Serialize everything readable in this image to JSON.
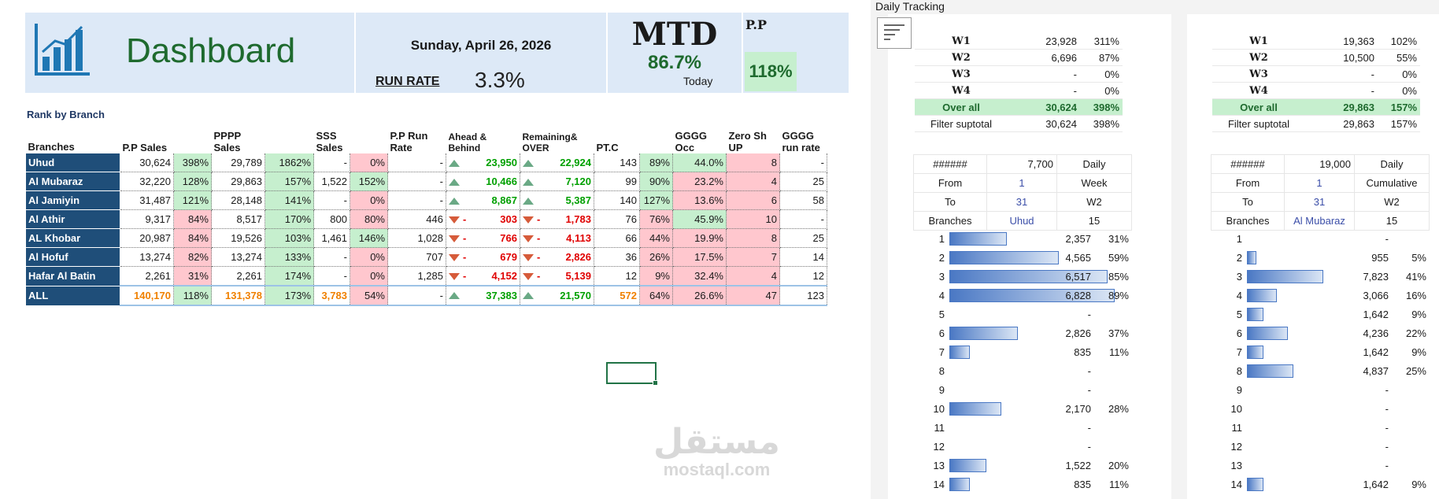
{
  "header": {
    "title": "Dashboard",
    "date": "Sunday, April 26, 2026",
    "run_rate_label": "RUN RATE",
    "run_rate_value": "3.3%",
    "mtd_label": "MTD",
    "mtd_value": "86.7%",
    "mtd_sub": "Today",
    "pp_label": "P.P",
    "pp_value": "118%",
    "pp_color": "#c6efce"
  },
  "rank": {
    "title": "Rank by Branch",
    "columns": [
      "Branches",
      "P.P Sales",
      "",
      "PPPP Sales",
      "",
      "SSS Sales",
      "",
      "P.P Run Rate",
      "Ahead & Behind",
      "Remaining& OVER",
      "PT.C",
      "",
      "GGGG Occ",
      "Zero Sh UP",
      "GGGG run rate"
    ],
    "rows": [
      {
        "branch": "Uhud",
        "pp": "30,624",
        "pp_pct": "398%",
        "pp_pct_s": "g",
        "pppp": "29,789",
        "pppp_pct": "1862%",
        "pppp_pct_s": "g",
        "sss": "-",
        "sss_pct": "0%",
        "sss_pct_s": "r",
        "run": "-",
        "ab": "23,950",
        "ab_dir": "up",
        "rem": "22,924",
        "rem_dir": "up",
        "ptc": "143",
        "ptc_pct": "89%",
        "ptc_pct_s": "g",
        "occ": "44.0%",
        "occ_s": "g",
        "zero": "8",
        "zero_s": "r",
        "rr": "-"
      },
      {
        "branch": "Al Mubaraz",
        "pp": "32,220",
        "pp_pct": "128%",
        "pp_pct_s": "g",
        "pppp": "29,863",
        "pppp_pct": "157%",
        "pppp_pct_s": "g",
        "sss": "1,522",
        "sss_pct": "152%",
        "sss_pct_s": "g",
        "run": "-",
        "ab": "10,466",
        "ab_dir": "up",
        "rem": "7,120",
        "rem_dir": "up",
        "ptc": "99",
        "ptc_pct": "90%",
        "ptc_pct_s": "g",
        "occ": "23.2%",
        "occ_s": "r",
        "zero": "4",
        "zero_s": "r",
        "rr": "25"
      },
      {
        "branch": "Al Jamiyin",
        "pp": "31,487",
        "pp_pct": "121%",
        "pp_pct_s": "g",
        "pppp": "28,148",
        "pppp_pct": "141%",
        "pppp_pct_s": "g",
        "sss": "-",
        "sss_pct": "0%",
        "sss_pct_s": "r",
        "run": "-",
        "ab": "8,867",
        "ab_dir": "up",
        "rem": "5,387",
        "rem_dir": "up",
        "ptc": "140",
        "ptc_pct": "127%",
        "ptc_pct_s": "g",
        "occ": "13.6%",
        "occ_s": "r",
        "zero": "6",
        "zero_s": "r",
        "rr": "58"
      },
      {
        "branch": "Al Athir",
        "pp": "9,317",
        "pp_pct": "84%",
        "pp_pct_s": "r",
        "pppp": "8,517",
        "pppp_pct": "170%",
        "pppp_pct_s": "g",
        "sss": "800",
        "sss_pct": "80%",
        "sss_pct_s": "r",
        "run": "446",
        "ab": "303",
        "ab_dir": "dn",
        "rem": "1,783",
        "rem_dir": "dn",
        "ptc": "76",
        "ptc_pct": "76%",
        "ptc_pct_s": "r",
        "occ": "45.9%",
        "occ_s": "g",
        "zero": "10",
        "zero_s": "r",
        "rr": "-"
      },
      {
        "branch": "AL Khobar",
        "pp": "20,987",
        "pp_pct": "84%",
        "pp_pct_s": "r",
        "pppp": "19,526",
        "pppp_pct": "103%",
        "pppp_pct_s": "g",
        "sss": "1,461",
        "sss_pct": "146%",
        "sss_pct_s": "g",
        "run": "1,028",
        "ab": "766",
        "ab_dir": "dn",
        "rem": "4,113",
        "rem_dir": "dn",
        "ptc": "66",
        "ptc_pct": "44%",
        "ptc_pct_s": "r",
        "occ": "19.9%",
        "occ_s": "r",
        "zero": "8",
        "zero_s": "r",
        "rr": "25"
      },
      {
        "branch": "Al Hofuf",
        "pp": "13,274",
        "pp_pct": "82%",
        "pp_pct_s": "r",
        "pppp": "13,274",
        "pppp_pct": "133%",
        "pppp_pct_s": "g",
        "sss": "-",
        "sss_pct": "0%",
        "sss_pct_s": "r",
        "run": "707",
        "ab": "679",
        "ab_dir": "dn",
        "rem": "2,826",
        "rem_dir": "dn",
        "ptc": "36",
        "ptc_pct": "26%",
        "ptc_pct_s": "r",
        "occ": "17.5%",
        "occ_s": "r",
        "zero": "7",
        "zero_s": "r",
        "rr": "14"
      },
      {
        "branch": "Hafar Al Batin",
        "pp": "2,261",
        "pp_pct": "31%",
        "pp_pct_s": "r",
        "pppp": "2,261",
        "pppp_pct": "174%",
        "pppp_pct_s": "g",
        "sss": "-",
        "sss_pct": "0%",
        "sss_pct_s": "r",
        "run": "1,285",
        "ab": "4,152",
        "ab_dir": "dn",
        "rem": "5,139",
        "rem_dir": "dn",
        "ptc": "12",
        "ptc_pct": "9%",
        "ptc_pct_s": "r",
        "occ": "32.4%",
        "occ_s": "r",
        "zero": "4",
        "zero_s": "r",
        "rr": "12"
      }
    ],
    "total": {
      "branch": "ALL",
      "pp": "140,170",
      "pp_pct": "118%",
      "pppp": "131,378",
      "pppp_pct": "173%",
      "sss": "3,783",
      "sss_pct": "54%",
      "run": "-",
      "ab": "37,383",
      "rem": "21,570",
      "ptc": "572",
      "ptc_pct": "64%",
      "occ": "26.6%",
      "zero": "47",
      "rr": "123"
    }
  },
  "tracking": {
    "title": "Daily Tracking",
    "panels": [
      {
        "weeks": [
          {
            "label": "W1",
            "value": "23,928",
            "pct": "311%"
          },
          {
            "label": "W2",
            "value": "6,696",
            "pct": "87%"
          },
          {
            "label": "W3",
            "value": "-",
            "pct": "0%"
          },
          {
            "label": "W4",
            "value": "-",
            "pct": "0%"
          }
        ],
        "overall": {
          "label": "Over all",
          "value": "30,624",
          "pct": "398%"
        },
        "subtotal": {
          "label": "Filter suptotal",
          "value": "30,624",
          "pct": "398%"
        },
        "ctl_target_label": "######",
        "ctl_target": "7,700",
        "ctl_mode": "Daily",
        "from_label": "From",
        "from": "1",
        "period": "Week",
        "to_label": "To",
        "to": "31",
        "week": "W2",
        "branches_label": "Branches",
        "branch": "Uhud",
        "count": "15",
        "bars": [
          {
            "rank": "1",
            "value": "2,357",
            "pct": "31%",
            "frac": 0.31
          },
          {
            "rank": "2",
            "value": "4,565",
            "pct": "59%",
            "frac": 0.59
          },
          {
            "rank": "3",
            "value": "6,517",
            "pct": "85%",
            "frac": 0.85
          },
          {
            "rank": "4",
            "value": "6,828",
            "pct": "89%",
            "frac": 0.89
          },
          {
            "rank": "5",
            "value": "-",
            "pct": "",
            "frac": 0
          },
          {
            "rank": "6",
            "value": "2,826",
            "pct": "37%",
            "frac": 0.37
          },
          {
            "rank": "7",
            "value": "835",
            "pct": "11%",
            "frac": 0.11
          },
          {
            "rank": "8",
            "value": "-",
            "pct": "",
            "frac": 0
          },
          {
            "rank": "9",
            "value": "-",
            "pct": "",
            "frac": 0
          },
          {
            "rank": "10",
            "value": "2,170",
            "pct": "28%",
            "frac": 0.28
          },
          {
            "rank": "11",
            "value": "-",
            "pct": "",
            "frac": 0
          },
          {
            "rank": "12",
            "value": "-",
            "pct": "",
            "frac": 0
          },
          {
            "rank": "13",
            "value": "1,522",
            "pct": "20%",
            "frac": 0.2
          },
          {
            "rank": "14",
            "value": "835",
            "pct": "11%",
            "frac": 0.11
          }
        ]
      },
      {
        "weeks": [
          {
            "label": "W1",
            "value": "19,363",
            "pct": "102%"
          },
          {
            "label": "W2",
            "value": "10,500",
            "pct": "55%"
          },
          {
            "label": "W3",
            "value": "-",
            "pct": "0%"
          },
          {
            "label": "W4",
            "value": "-",
            "pct": "0%"
          }
        ],
        "overall": {
          "label": "Over all",
          "value": "29,863",
          "pct": "157%"
        },
        "subtotal": {
          "label": "Filter suptotal",
          "value": "29,863",
          "pct": "157%"
        },
        "ctl_target_label": "######",
        "ctl_target": "19,000",
        "ctl_mode": "Daily",
        "from_label": "From",
        "from": "1",
        "period": "Cumulative",
        "to_label": "To",
        "to": "31",
        "week": "W2",
        "branches_label": "Branches",
        "branch": "Al Mubaraz",
        "count": "15",
        "bars": [
          {
            "rank": "1",
            "value": "-",
            "pct": "",
            "frac": 0
          },
          {
            "rank": "2",
            "value": "955",
            "pct": "5%",
            "frac": 0.05
          },
          {
            "rank": "3",
            "value": "7,823",
            "pct": "41%",
            "frac": 0.41
          },
          {
            "rank": "4",
            "value": "3,066",
            "pct": "16%",
            "frac": 0.16
          },
          {
            "rank": "5",
            "value": "1,642",
            "pct": "9%",
            "frac": 0.09
          },
          {
            "rank": "6",
            "value": "4,236",
            "pct": "22%",
            "frac": 0.22
          },
          {
            "rank": "7",
            "value": "1,642",
            "pct": "9%",
            "frac": 0.09
          },
          {
            "rank": "8",
            "value": "4,837",
            "pct": "25%",
            "frac": 0.25
          },
          {
            "rank": "9",
            "value": "-",
            "pct": "",
            "frac": 0
          },
          {
            "rank": "10",
            "value": "-",
            "pct": "",
            "frac": 0
          },
          {
            "rank": "11",
            "value": "-",
            "pct": "",
            "frac": 0
          },
          {
            "rank": "12",
            "value": "-",
            "pct": "",
            "frac": 0
          },
          {
            "rank": "13",
            "value": "-",
            "pct": "",
            "frac": 0
          },
          {
            "rank": "14",
            "value": "1,642",
            "pct": "9%",
            "frac": 0.09
          }
        ]
      }
    ]
  },
  "watermark": {
    "arabic": "مستقل",
    "latin": "mostaql.com"
  }
}
